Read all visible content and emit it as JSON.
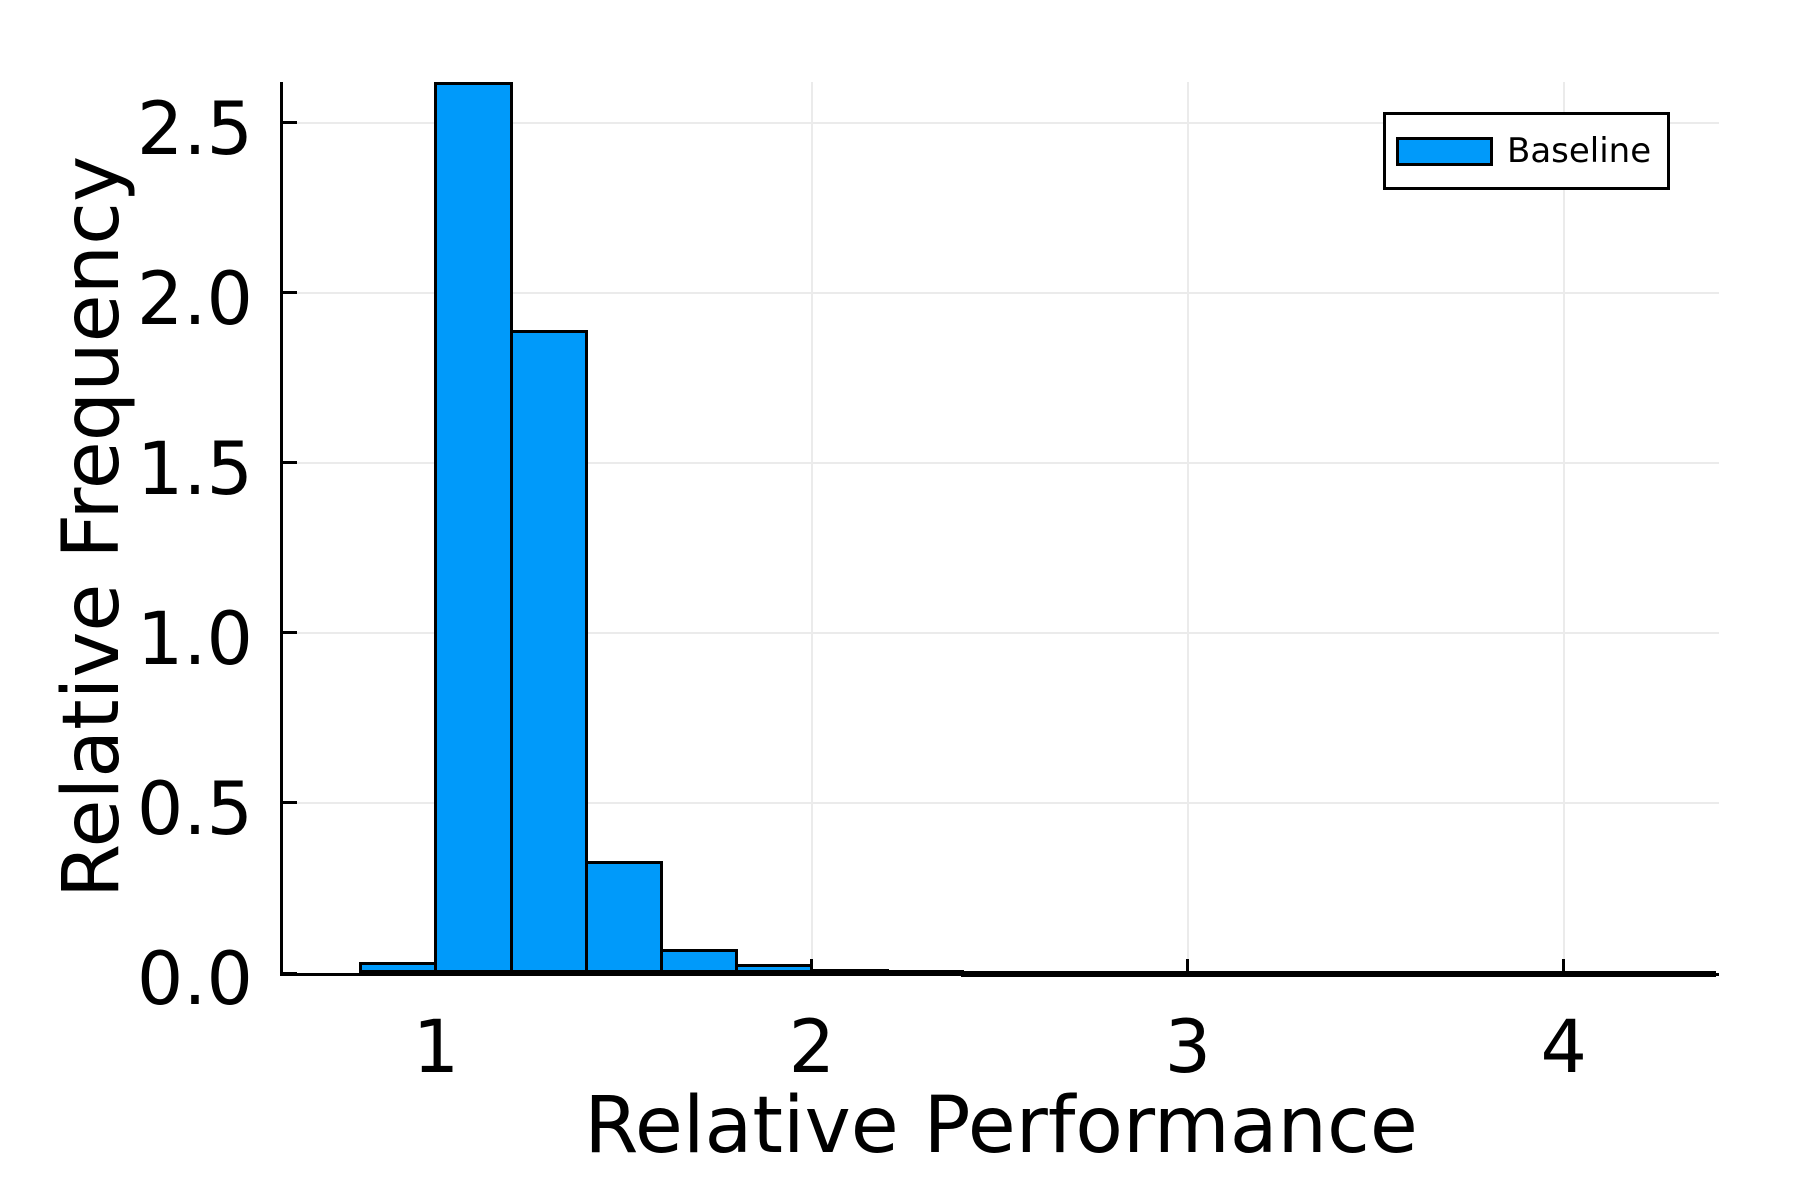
{
  "chart_data": {
    "type": "bar",
    "subtype": "histogram",
    "xlabel": "Relative Performance",
    "ylabel": "Relative Frequency",
    "bin_start": 0.8,
    "bin_width": 0.2,
    "bin_edges": [
      0.8,
      1.0,
      1.2,
      1.4,
      1.6,
      1.8,
      2.0,
      2.2,
      2.4,
      2.6,
      2.8,
      3.0,
      3.2,
      3.4,
      3.6,
      3.8,
      4.0,
      4.2,
      4.4
    ],
    "values": [
      0.032,
      2.62,
      1.89,
      0.33,
      0.072,
      0.025,
      0.013,
      0.01,
      0.003,
      0.006,
      0.002,
      0.005,
      0.002,
      0.001,
      0.004,
      0.001,
      0.005,
      0.002
    ],
    "x_ticks": [
      {
        "value": 1,
        "label": "1"
      },
      {
        "value": 2,
        "label": "2"
      },
      {
        "value": 3,
        "label": "3"
      },
      {
        "value": 4,
        "label": "4"
      }
    ],
    "y_ticks": [
      {
        "value": 0.0,
        "label": "0.0"
      },
      {
        "value": 0.5,
        "label": "0.5"
      },
      {
        "value": 1.0,
        "label": "1.0"
      },
      {
        "value": 1.5,
        "label": "1.5"
      },
      {
        "value": 2.0,
        "label": "2.0"
      },
      {
        "value": 2.5,
        "label": "2.5"
      }
    ],
    "xlim": [
      0.593,
      4.413
    ],
    "ylim": [
      0,
      2.62
    ],
    "grid": true,
    "legend": {
      "position": "top-right",
      "entries": [
        {
          "label": "Baseline",
          "color": "#009AFA"
        }
      ]
    },
    "colors": {
      "bar_fill": "#009AFA",
      "bar_edge": "#000000",
      "grid": "#EBEBEB",
      "axis": "#000000",
      "background": "#FFFFFF"
    }
  }
}
